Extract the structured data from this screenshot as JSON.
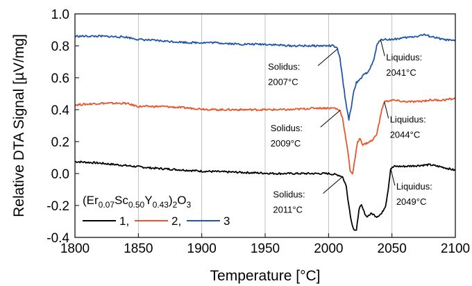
{
  "chart_data": {
    "type": "line",
    "xlabel": "Temperature [°C]",
    "ylabel": "Relative DTA Signal [µV/mg]",
    "xlim": [
      1800,
      2100
    ],
    "ylim": [
      -0.4,
      1.0
    ],
    "x_ticks": [
      "1800",
      "1850",
      "1900",
      "1950",
      "2000",
      "2050",
      "2100"
    ],
    "y_ticks": [
      "-0.4",
      "-0.2",
      "0.0",
      "0.2",
      "0.4",
      "0.6",
      "0.8",
      "1.0"
    ],
    "grid": "vertical",
    "legend": {
      "composition": {
        "open": "(Er",
        "er_sub": "0.07",
        "sc": "Sc",
        "sc_sub": "0.50",
        "y": "Y",
        "y_sub": "0.43",
        "close": ")",
        "outer_sub": "2",
        "o": "O",
        "o_sub": "3"
      },
      "placement": "bottom-left",
      "labels": [
        "1,",
        "2,",
        "3"
      ]
    },
    "series": [
      {
        "key": "1",
        "color": "#000000",
        "points": [
          [
            1800,
            0.075
          ],
          [
            1820,
            0.065
          ],
          [
            1840,
            0.05
          ],
          [
            1860,
            0.035
          ],
          [
            1880,
            0.025
          ],
          [
            1900,
            0.015
          ],
          [
            1920,
            0.01
          ],
          [
            1940,
            0.005
          ],
          [
            1960,
            0.0
          ],
          [
            1980,
            0.0
          ],
          [
            2000,
            0.0
          ],
          [
            2008,
            -0.01
          ],
          [
            2011,
            -0.02
          ],
          [
            2014,
            -0.08
          ],
          [
            2016,
            -0.2
          ],
          [
            2018,
            -0.3
          ],
          [
            2020,
            -0.35
          ],
          [
            2022,
            -0.36
          ],
          [
            2024,
            -0.22
          ],
          [
            2026,
            -0.2
          ],
          [
            2028,
            -0.24
          ],
          [
            2030,
            -0.27
          ],
          [
            2034,
            -0.25
          ],
          [
            2038,
            -0.27
          ],
          [
            2042,
            -0.25
          ],
          [
            2045,
            -0.2
          ],
          [
            2047,
            -0.1
          ],
          [
            2049,
            0.03
          ],
          [
            2052,
            0.045
          ],
          [
            2060,
            0.045
          ],
          [
            2070,
            0.05
          ],
          [
            2080,
            0.055
          ],
          [
            2090,
            0.04
          ],
          [
            2100,
            0.02
          ]
        ]
      },
      {
        "key": "2",
        "color": "#e8552a",
        "points": [
          [
            1800,
            0.43
          ],
          [
            1820,
            0.44
          ],
          [
            1840,
            0.44
          ],
          [
            1850,
            0.42
          ],
          [
            1870,
            0.42
          ],
          [
            1890,
            0.41
          ],
          [
            1910,
            0.4
          ],
          [
            1930,
            0.4
          ],
          [
            1950,
            0.4
          ],
          [
            1970,
            0.4
          ],
          [
            1990,
            0.41
          ],
          [
            2005,
            0.41
          ],
          [
            2009,
            0.395
          ],
          [
            2011,
            0.35
          ],
          [
            2013,
            0.25
          ],
          [
            2015,
            0.15
          ],
          [
            2017,
            0.02
          ],
          [
            2019,
            0.0
          ],
          [
            2021,
            0.1
          ],
          [
            2023,
            0.2
          ],
          [
            2025,
            0.22
          ],
          [
            2027,
            0.18
          ],
          [
            2030,
            0.19
          ],
          [
            2035,
            0.21
          ],
          [
            2038,
            0.25
          ],
          [
            2040,
            0.32
          ],
          [
            2042,
            0.4
          ],
          [
            2044,
            0.45
          ],
          [
            2050,
            0.46
          ],
          [
            2060,
            0.45
          ],
          [
            2070,
            0.45
          ],
          [
            2080,
            0.46
          ],
          [
            2090,
            0.46
          ],
          [
            2100,
            0.47
          ]
        ]
      },
      {
        "key": "3",
        "color": "#1f56a8",
        "points": [
          [
            1800,
            0.86
          ],
          [
            1820,
            0.86
          ],
          [
            1840,
            0.855
          ],
          [
            1850,
            0.84
          ],
          [
            1870,
            0.83
          ],
          [
            1890,
            0.82
          ],
          [
            1910,
            0.82
          ],
          [
            1930,
            0.81
          ],
          [
            1950,
            0.81
          ],
          [
            1970,
            0.8
          ],
          [
            1990,
            0.8
          ],
          [
            2004,
            0.8
          ],
          [
            2007,
            0.78
          ],
          [
            2009,
            0.72
          ],
          [
            2011,
            0.6
          ],
          [
            2013,
            0.48
          ],
          [
            2015,
            0.38
          ],
          [
            2016,
            0.34
          ],
          [
            2018,
            0.42
          ],
          [
            2020,
            0.52
          ],
          [
            2022,
            0.57
          ],
          [
            2024,
            0.58
          ],
          [
            2026,
            0.6
          ],
          [
            2028,
            0.62
          ],
          [
            2030,
            0.63
          ],
          [
            2033,
            0.66
          ],
          [
            2036,
            0.72
          ],
          [
            2038,
            0.8
          ],
          [
            2041,
            0.84
          ],
          [
            2050,
            0.84
          ],
          [
            2060,
            0.85
          ],
          [
            2070,
            0.86
          ],
          [
            2075,
            0.87
          ],
          [
            2080,
            0.86
          ],
          [
            2090,
            0.84
          ],
          [
            2100,
            0.83
          ]
        ]
      }
    ],
    "annotations": [
      {
        "series": "3",
        "label": "Solidus:",
        "value": "2007°C"
      },
      {
        "series": "3",
        "label": "Liquidus:",
        "value": "2041°C"
      },
      {
        "series": "2",
        "label": "Solidus:",
        "value": "2009°C"
      },
      {
        "series": "2",
        "label": "Liquidus:",
        "value": "2044°C"
      },
      {
        "series": "1",
        "label": "Solidus:",
        "value": "2011°C"
      },
      {
        "series": "1",
        "label": "Liquidus:",
        "value": "2049°C"
      }
    ]
  }
}
